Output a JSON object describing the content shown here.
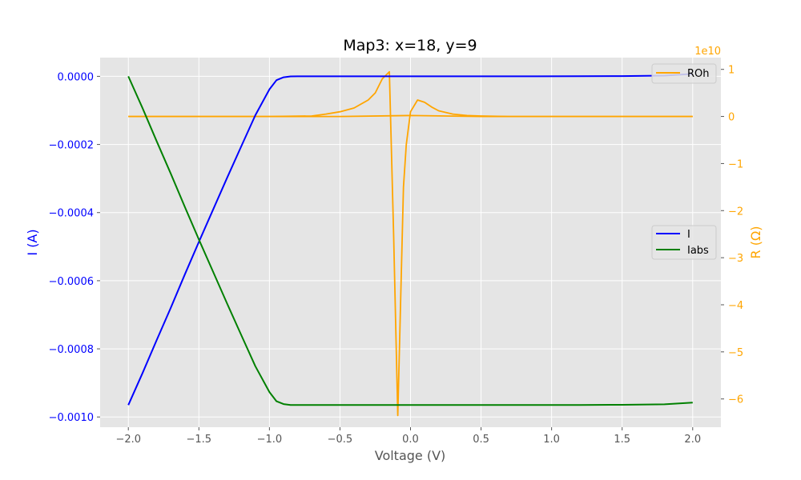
{
  "chart_data": {
    "type": "line",
    "title": "Map3: x=18, y=9",
    "xlabel": "Voltage (V)",
    "ylabel_left": "I (A)",
    "ylabel_right": "R (Ω)",
    "right_axis_exponent_label": "1e10",
    "xlim": [
      -2.2,
      2.2
    ],
    "ylim_left": [
      -0.00103,
      5.5e-05
    ],
    "ylim_right": [
      -6.6,
      1.25
    ],
    "x_ticks": [
      -2.0,
      -1.5,
      -1.0,
      -0.5,
      0.0,
      0.5,
      1.0,
      1.5,
      2.0
    ],
    "x_tick_labels": [
      "−2.0",
      "−1.5",
      "−1.0",
      "−0.5",
      "0.0",
      "0.5",
      "1.0",
      "1.5",
      "2.0"
    ],
    "y_left_ticks": [
      0.0,
      -0.0002,
      -0.0004,
      -0.0006,
      -0.0008,
      -0.001
    ],
    "y_left_tick_labels": [
      "0.0000",
      "−0.0002",
      "−0.0004",
      "−0.0006",
      "−0.0008",
      "−0.0010"
    ],
    "y_right_ticks": [
      1,
      0,
      -1,
      -2,
      -3,
      -4,
      -5,
      -6
    ],
    "y_right_tick_labels": [
      "1",
      "0",
      "−1",
      "−2",
      "−3",
      "−4",
      "−5",
      "−6"
    ],
    "grid": true,
    "colors": {
      "I": "#0000ff",
      "Iabs": "#008000",
      "ROh": "#ffa500",
      "left_axis": "#0000ff",
      "right_axis": "#ffa500",
      "plot_bg": "#e5e5e5",
      "grid": "#ffffff"
    },
    "legends": [
      {
        "placement": "top-right",
        "axis": "right",
        "entries": [
          "ROh"
        ]
      },
      {
        "placement": "center-right",
        "axis": "left",
        "entries": [
          "I",
          "Iabs"
        ]
      }
    ],
    "series": [
      {
        "name": "I",
        "axis": "left",
        "x": [
          -2.0,
          -1.9,
          -1.8,
          -1.7,
          -1.6,
          -1.5,
          -1.4,
          -1.3,
          -1.2,
          -1.1,
          -1.0,
          -0.95,
          -0.9,
          -0.85,
          -0.8,
          -0.75,
          -0.7,
          -0.5,
          -0.3,
          0.0,
          0.3,
          0.6,
          0.9,
          1.2,
          1.5,
          1.8,
          2.0
        ],
        "y": [
          -0.000965,
          -0.000872,
          -0.000775,
          -0.00068,
          -0.000582,
          -0.000486,
          -0.000392,
          -0.000298,
          -0.000206,
          -0.000114,
          -3.8e-05,
          -1.12e-05,
          -2.8e-06,
          -3e-07,
          0.0,
          0.0,
          0.0,
          0.0,
          0.0,
          0.0,
          0.0,
          0.0,
          1e-07,
          3e-07,
          7e-07,
          2.2e-06,
          7.2e-06
        ]
      },
      {
        "name": "Iabs",
        "axis": "left",
        "x": [
          -2.0,
          -1.9,
          -1.8,
          -1.7,
          -1.6,
          -1.5,
          -1.4,
          -1.3,
          -1.2,
          -1.1,
          -1.0,
          -0.95,
          -0.9,
          -0.85,
          -0.8,
          -0.75,
          -0.7,
          -0.5,
          -0.3,
          0.0,
          0.3,
          0.6,
          0.9,
          1.2,
          1.5,
          1.8,
          2.0
        ],
        "y": [
          0.0,
          -9.26e-05,
          -0.00019,
          -0.000285,
          -0.000383,
          -0.000479,
          -0.000573,
          -0.000667,
          -0.000759,
          -0.000851,
          -0.000927,
          -0.0009538,
          -0.0009622,
          -0.0009647,
          -0.000965,
          -0.000965,
          -0.000965,
          -0.000965,
          -0.000965,
          -0.000965,
          -0.000965,
          -0.000965,
          -0.0009649,
          -0.0009647,
          -0.0009643,
          -0.0009628,
          -0.0009578
        ]
      },
      {
        "name": "ROh",
        "axis": "right",
        "x": [
          -2.0,
          -1.5,
          -1.0,
          -0.7,
          -0.6,
          -0.5,
          -0.4,
          -0.3,
          -0.25,
          -0.2,
          -0.15,
          -0.12,
          -0.09,
          -0.05,
          -0.03,
          0.0,
          0.05,
          0.1,
          0.15,
          0.2,
          0.3,
          0.4,
          0.5,
          0.7,
          1.0,
          1.5,
          2.0
        ],
        "y": [
          0.0,
          0.0,
          0.0,
          0.01,
          0.05,
          0.1,
          0.18,
          0.35,
          0.5,
          0.8,
          0.95,
          -2.5,
          -6.35,
          -1.5,
          -0.6,
          0.1,
          0.35,
          0.3,
          0.2,
          0.12,
          0.05,
          0.02,
          0.01,
          0.0,
          0.0,
          0.0,
          0.0
        ]
      },
      {
        "name": "",
        "axis": "right",
        "x": [
          -2.0,
          -1.0,
          -0.5,
          0.0,
          0.5,
          1.0,
          2.0
        ],
        "y": [
          0.0,
          0.0,
          0.0,
          0.02,
          0.0,
          0.0,
          0.0
        ]
      }
    ]
  }
}
